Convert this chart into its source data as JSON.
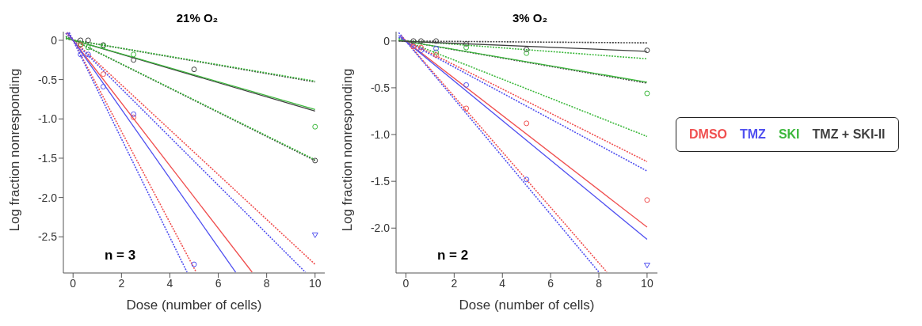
{
  "chart_data": [
    {
      "type": "line",
      "title": "21% O₂",
      "xlabel": "Dose (number of cells)",
      "ylabel": "Log fraction nonresponding",
      "xlim": [
        -0.4,
        10.4
      ],
      "ylim": [
        -2.96,
        0.11
      ],
      "xticks": [
        0,
        2,
        4,
        6,
        8,
        10
      ],
      "yticks": [
        0,
        {
          "value": -0.5,
          "label": "-0.5"
        },
        {
          "value": -1,
          "label": "-1.0"
        },
        {
          "value": -1.5,
          "label": "-1.5"
        },
        {
          "value": -2,
          "label": "-2.0"
        },
        {
          "value": -2.5,
          "label": "-2.5"
        }
      ],
      "annotations": [
        "n = 3"
      ],
      "legend": false,
      "series": [
        {
          "type": "line",
          "color": "#404040",
          "line_style": "dashed",
          "marker": "none",
          "x": [
            -0.3,
            10
          ],
          "values": [
            0.02,
            -0.53
          ]
        },
        {
          "type": "line",
          "color": "#404040",
          "line_style": "dashed",
          "marker": "none",
          "x": [
            -0.3,
            10
          ],
          "values": [
            0.05,
            -1.53
          ]
        },
        {
          "type": "line",
          "color": "#3cb83c",
          "line_style": "dashed",
          "marker": "none",
          "x": [
            -0.3,
            10
          ],
          "values": [
            0.02,
            -0.52
          ]
        },
        {
          "type": "line",
          "color": "#3cb83c",
          "line_style": "dashed",
          "marker": "none",
          "x": [
            -0.3,
            10
          ],
          "values": [
            0.05,
            -1.52
          ]
        },
        {
          "type": "line",
          "color": "#f05050",
          "line_style": "dashed",
          "marker": "none",
          "x": [
            -0.3,
            10
          ],
          "values": [
            0.09,
            -2.85
          ]
        },
        {
          "type": "line",
          "color": "#f05050",
          "line_style": "dashed",
          "marker": "none",
          "x": [
            -0.17,
            5.09
          ],
          "values": [
            0.1,
            -2.95
          ]
        },
        {
          "type": "line",
          "color": "#5050f0",
          "line_style": "dashed",
          "marker": "none",
          "x": [
            -0.3,
            9.6
          ],
          "values": [
            0.09,
            -2.95
          ]
        },
        {
          "type": "line",
          "color": "#5050f0",
          "line_style": "dashed",
          "marker": "none",
          "x": [
            -0.16,
            4.71
          ],
          "values": [
            0.1,
            -2.95
          ]
        },
        {
          "type": "line",
          "color": "#404040",
          "line_style": "solid",
          "marker": "none",
          "x": [
            -0.3,
            10
          ],
          "values": [
            0.03,
            -0.9
          ]
        },
        {
          "type": "line",
          "color": "#3cb83c",
          "line_style": "solid",
          "marker": "none",
          "x": [
            -0.3,
            10
          ],
          "values": [
            0.03,
            -0.88
          ]
        },
        {
          "type": "line",
          "color": "#f05050",
          "line_style": "solid",
          "marker": "none",
          "x": [
            -0.25,
            7.4
          ],
          "values": [
            0.1,
            -2.95
          ]
        },
        {
          "type": "line",
          "color": "#5050f0",
          "line_style": "solid",
          "marker": "none",
          "x": [
            -0.23,
            6.72
          ],
          "values": [
            0.1,
            -2.95
          ]
        },
        {
          "type": "scatter",
          "color": "#404040",
          "marker": "circle",
          "x": [
            0.31,
            0.625,
            1.25,
            2.5,
            5,
            10
          ],
          "values": [
            0,
            0,
            -0.06,
            -0.25,
            -0.37,
            -1.53
          ]
        },
        {
          "type": "scatter",
          "color": "#3cb83c",
          "marker": "circle",
          "x": [
            0.31,
            0.625,
            1.25,
            2.5,
            10
          ],
          "values": [
            -0.05,
            -0.09,
            -0.07,
            -0.18,
            -1.1
          ]
        },
        {
          "type": "scatter",
          "color": "#f05050",
          "marker": "circle",
          "x": [
            0.31,
            1.25,
            2.5
          ],
          "values": [
            -0.06,
            -0.43,
            -0.98
          ]
        },
        {
          "type": "scatter",
          "color": "#5050f0",
          "marker": "circle",
          "x": [
            0.31,
            0.625,
            1.25,
            2.5,
            5
          ],
          "values": [
            -0.18,
            -0.18,
            -0.59,
            -0.94,
            -2.85
          ]
        },
        {
          "type": "scatter",
          "color": "#5050f0",
          "marker": "triangle",
          "x": [
            10
          ],
          "values": [
            -2.48
          ]
        }
      ]
    },
    {
      "type": "line",
      "title": "3% O₂",
      "xlabel": "Dose (number of cells)",
      "ylabel": "Log fraction nonresponding",
      "xlim": [
        -0.41,
        10.43
      ],
      "ylim": [
        -2.48,
        0.1
      ],
      "xticks": [
        0,
        2,
        4,
        6,
        8,
        10
      ],
      "yticks": [
        0,
        {
          "value": -0.5,
          "label": "-0.5"
        },
        {
          "value": -1,
          "label": "-1.0"
        },
        {
          "value": -1.5,
          "label": "-1.5"
        },
        {
          "value": -2,
          "label": "-2.0"
        }
      ],
      "annotations": [
        "n = 2"
      ],
      "legend": "right",
      "series": [
        {
          "type": "line",
          "color": "#404040",
          "line_style": "dashed",
          "marker": "none",
          "x": [
            -0.3,
            10
          ],
          "values": [
            0,
            -0.02
          ]
        },
        {
          "type": "line",
          "color": "#404040",
          "line_style": "dashed",
          "marker": "none",
          "x": [
            -0.3,
            10
          ],
          "values": [
            0.01,
            -0.45
          ]
        },
        {
          "type": "line",
          "color": "#3cb83c",
          "line_style": "dashed",
          "marker": "none",
          "x": [
            -0.3,
            10
          ],
          "values": [
            0.01,
            -0.19
          ]
        },
        {
          "type": "line",
          "color": "#3cb83c",
          "line_style": "dashed",
          "marker": "none",
          "x": [
            -0.3,
            10
          ],
          "values": [
            0.03,
            -1.02
          ]
        },
        {
          "type": "line",
          "color": "#f05050",
          "line_style": "dashed",
          "marker": "none",
          "x": [
            -0.2,
            10
          ],
          "values": [
            0.03,
            -1.29
          ]
        },
        {
          "type": "line",
          "color": "#f05050",
          "line_style": "dashed",
          "marker": "none",
          "x": [
            -0.2,
            8.33
          ],
          "values": [
            0.06,
            -2.47
          ]
        },
        {
          "type": "line",
          "color": "#5050f0",
          "line_style": "dashed",
          "marker": "none",
          "x": [
            -0.3,
            10
          ],
          "values": [
            0.04,
            -1.39
          ]
        },
        {
          "type": "line",
          "color": "#5050f0",
          "line_style": "dashed",
          "marker": "none",
          "x": [
            -0.3,
            8
          ],
          "values": [
            0.09,
            -2.47
          ]
        },
        {
          "type": "line",
          "name": "DMSO",
          "color": "#f05050",
          "line_style": "solid",
          "marker": "none",
          "x": [
            -0.2,
            10
          ],
          "values": [
            0.04,
            -1.99
          ]
        },
        {
          "type": "line",
          "name": "TMZ",
          "color": "#5050f0",
          "line_style": "solid",
          "marker": "none",
          "x": [
            -0.3,
            10
          ],
          "values": [
            0.06,
            -2.12
          ]
        },
        {
          "type": "line",
          "name": "SKI",
          "color": "#3cb83c",
          "line_style": "solid",
          "marker": "none",
          "x": [
            -0.3,
            10
          ],
          "values": [
            0.01,
            -0.44
          ]
        },
        {
          "type": "line",
          "name": "TMZ + SKI-II",
          "color": "#404040",
          "line_style": "solid",
          "marker": "none",
          "x": [
            -0.3,
            10
          ],
          "values": [
            0,
            -0.11
          ]
        },
        {
          "type": "scatter",
          "color": "#404040",
          "marker": "circle",
          "x": [
            0.31,
            0.625,
            1.25,
            2.5,
            5,
            10
          ],
          "values": [
            0,
            0,
            0,
            -0.03,
            -0.09,
            -0.1
          ]
        },
        {
          "type": "scatter",
          "color": "#3cb83c",
          "marker": "circle",
          "x": [
            1.25,
            2.5,
            5,
            10
          ],
          "values": [
            -0.12,
            -0.07,
            -0.13,
            -0.56
          ]
        },
        {
          "type": "scatter",
          "color": "#f05050",
          "marker": "circle",
          "x": [
            0.31,
            0.625,
            1.25,
            2.5,
            5,
            10
          ],
          "values": [
            -0.06,
            -0.07,
            -0.15,
            -0.72,
            -0.88,
            -1.7
          ]
        },
        {
          "type": "scatter",
          "color": "#5050f0",
          "marker": "circle",
          "x": [
            0.625,
            1.25,
            2.5,
            5
          ],
          "values": [
            -0.1,
            -0.08,
            -0.47,
            -1.48
          ]
        },
        {
          "type": "scatter",
          "color": "#5050f0",
          "marker": "triangle",
          "x": [
            10
          ],
          "values": [
            -2.4
          ]
        }
      ]
    }
  ]
}
